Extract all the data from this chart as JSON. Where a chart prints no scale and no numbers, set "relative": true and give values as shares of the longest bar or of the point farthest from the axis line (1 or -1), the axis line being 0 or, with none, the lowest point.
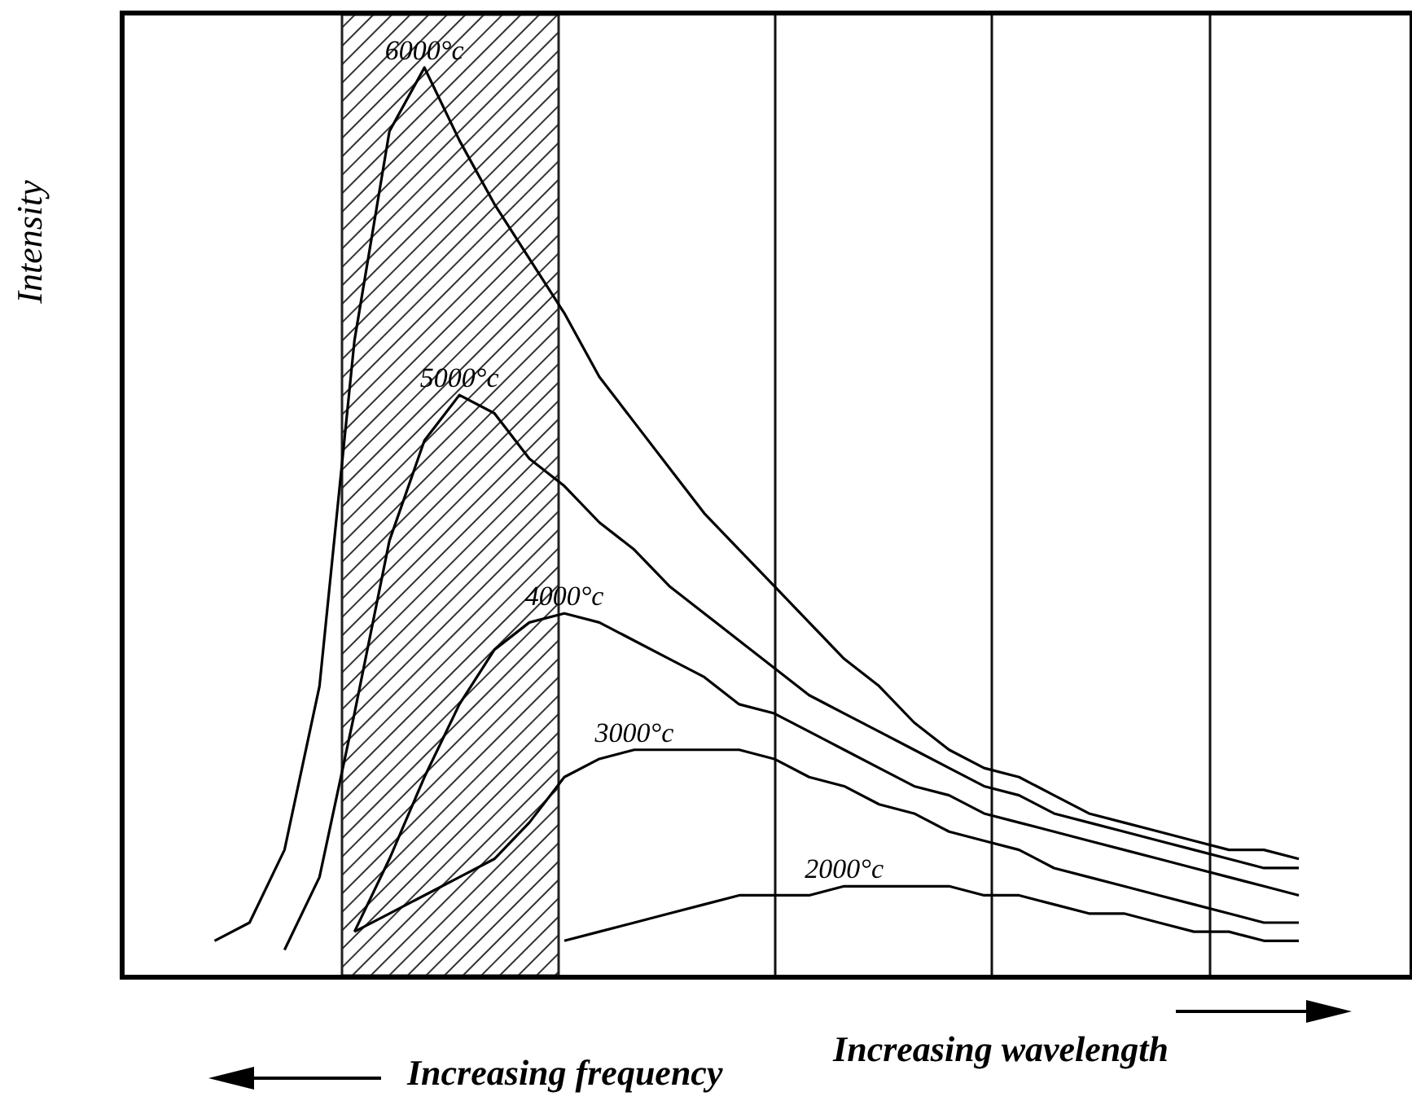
{
  "chart_data": {
    "type": "line",
    "relative": true,
    "xlabel": "Increasing wavelength",
    "ylabel": "Intensity",
    "annotations": [
      "Increasing frequency"
    ],
    "categories": [
      null,
      null,
      null,
      null,
      null,
      null,
      null,
      null,
      null,
      null,
      null,
      null,
      null,
      null,
      null,
      null,
      null,
      null,
      null,
      null,
      null,
      null,
      null,
      null,
      null,
      null,
      null,
      null,
      null,
      null,
      null,
      null
    ],
    "marker": "none",
    "line_style": "solid",
    "series": [
      {
        "name": "6000°c",
        "color": "#000000",
        "values": [
          0.04,
          0.06,
          0.14,
          0.32,
          0.7,
          0.93,
          1.0,
          0.92,
          0.85,
          0.79,
          0.73,
          0.66,
          0.61,
          0.56,
          0.51,
          0.47,
          0.43,
          0.39,
          0.35,
          0.32,
          0.28,
          0.25,
          0.23,
          0.22,
          0.2,
          0.18,
          0.17,
          0.16,
          0.15,
          0.14,
          0.14,
          0.13
        ]
      },
      {
        "name": "5000°c",
        "color": "#000000",
        "values": [
          null,
          null,
          0.03,
          0.11,
          0.29,
          0.48,
          0.59,
          0.64,
          0.62,
          0.57,
          0.54,
          0.5,
          0.47,
          0.43,
          0.4,
          0.37,
          0.34,
          0.31,
          0.29,
          0.27,
          0.25,
          0.23,
          0.21,
          0.2,
          0.18,
          0.17,
          0.16,
          0.15,
          0.14,
          0.13,
          0.12,
          0.12
        ]
      },
      {
        "name": "4000°c",
        "color": "#000000",
        "values": [
          null,
          null,
          null,
          null,
          0.05,
          0.13,
          0.22,
          0.3,
          0.36,
          0.39,
          0.4,
          0.39,
          0.37,
          0.35,
          0.33,
          0.3,
          0.29,
          0.27,
          0.25,
          0.23,
          0.21,
          0.2,
          0.18,
          0.17,
          0.16,
          0.15,
          0.14,
          0.13,
          0.12,
          0.11,
          0.1,
          0.09
        ]
      },
      {
        "name": "3000°c",
        "color": "#000000",
        "values": [
          null,
          null,
          null,
          null,
          0.05,
          0.07,
          0.09,
          0.11,
          0.13,
          0.17,
          0.22,
          0.24,
          0.25,
          0.25,
          0.25,
          0.25,
          0.24,
          0.22,
          0.21,
          0.19,
          0.18,
          0.16,
          0.15,
          0.14,
          0.12,
          0.11,
          0.1,
          0.09,
          0.08,
          0.07,
          0.06,
          0.06
        ]
      },
      {
        "name": "2000°c",
        "color": "#000000",
        "values": [
          null,
          null,
          null,
          null,
          null,
          null,
          null,
          null,
          null,
          null,
          0.04,
          0.05,
          0.06,
          0.07,
          0.08,
          0.09,
          0.09,
          0.09,
          0.1,
          0.1,
          0.1,
          0.1,
          0.09,
          0.09,
          0.08,
          0.07,
          0.07,
          0.06,
          0.05,
          0.05,
          0.04,
          0.04
        ]
      }
    ]
  }
}
